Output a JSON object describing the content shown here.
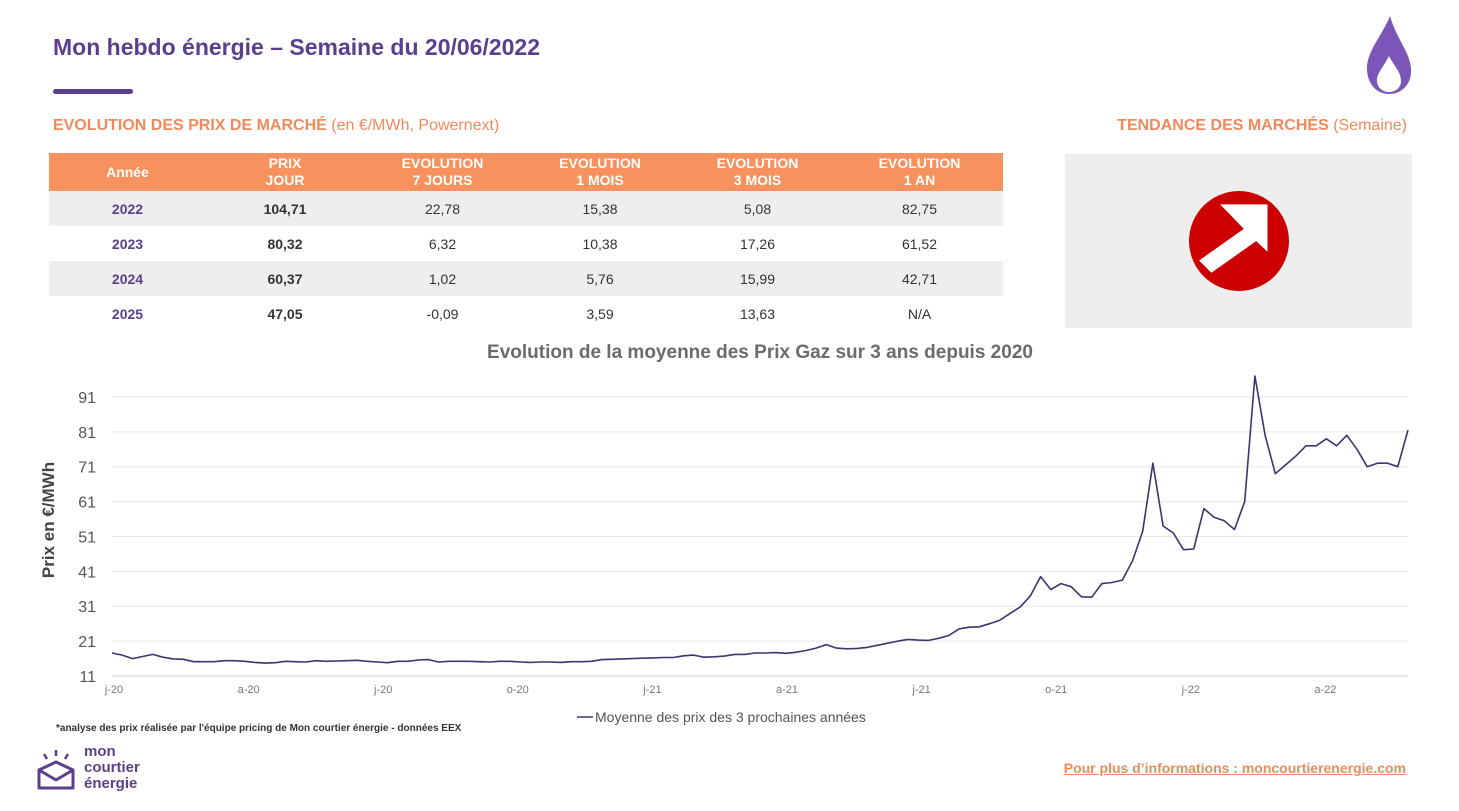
{
  "header": {
    "title": "Mon hebdo énergie – Semaine du 20/06/2022"
  },
  "market_prices": {
    "heading_bold": "EVOLUTION DES PRIX DE MARCHÉ",
    "heading_rest": " (en €/MWh, Powernext)",
    "columns": [
      "Année",
      "PRIX\nJOUR",
      "EVOLUTION\n7 JOURS",
      "EVOLUTION\n1 MOIS",
      "EVOLUTION\n3 MOIS",
      "EVOLUTION\n1 AN"
    ],
    "rows": [
      [
        "2022",
        "104,71",
        "22,78",
        "15,38",
        "5,08",
        "82,75"
      ],
      [
        "2023",
        "80,32",
        "6,32",
        "10,38",
        "17,26",
        "61,52"
      ],
      [
        "2024",
        "60,37",
        "1,02",
        "5,76",
        "15,99",
        "42,71"
      ],
      [
        "2025",
        "47,05",
        "-0,09",
        "3,59",
        "13,63",
        "N/A"
      ]
    ]
  },
  "trend": {
    "heading_bold": "TENDANCE DES MARCHÉS",
    "heading_rest": " (Semaine)",
    "icon": "trend-up-arrow-icon",
    "color": "#cc0000"
  },
  "chart_data": {
    "type": "line",
    "title": "Evolution de la moyenne des Prix Gaz sur 3 ans depuis 2020",
    "ylabel": "Prix en €/MWh",
    "xlabel": "",
    "ylim": [
      11,
      97
    ],
    "yticks": [
      11,
      21,
      31,
      41,
      51,
      61,
      71,
      81,
      91
    ],
    "grid": true,
    "legend_position": "bottom",
    "xtick_labels": [
      "j-20",
      "a-20",
      "j-20",
      "o-20",
      "j-21",
      "a-21",
      "j-21",
      "o-21",
      "j-22",
      "a-22"
    ],
    "series": [
      {
        "name": "Moyenne des prix des 3 prochaines années",
        "color": "#3d3470",
        "values": [
          17.6,
          17.0,
          16.0,
          16.6,
          17.2,
          16.4,
          15.9,
          15.8,
          15.1,
          15.1,
          15.1,
          15.4,
          15.4,
          15.2,
          14.9,
          14.7,
          14.8,
          15.2,
          15.1,
          15.0,
          15.4,
          15.2,
          15.3,
          15.4,
          15.5,
          15.2,
          15.0,
          14.8,
          15.2,
          15.2,
          15.6,
          15.7,
          15.0,
          15.2,
          15.2,
          15.2,
          15.1,
          15.0,
          15.2,
          15.2,
          15.0,
          14.9,
          15.0,
          15.0,
          14.9,
          15.1,
          15.1,
          15.2,
          15.7,
          15.8,
          15.9,
          16.0,
          16.1,
          16.2,
          16.3,
          16.3,
          16.8,
          17.0,
          16.4,
          16.5,
          16.7,
          17.2,
          17.2,
          17.6,
          17.6,
          17.7,
          17.5,
          17.8,
          18.3,
          19.0,
          20.0,
          19.0,
          18.8,
          18.9,
          19.2,
          19.8,
          20.4,
          21.0,
          21.5,
          21.3,
          21.2,
          21.8,
          22.6,
          24.5,
          25.0,
          25.1,
          26.0,
          27.0,
          28.9,
          30.8,
          34.0,
          39.5,
          35.8,
          37.5,
          36.6,
          33.7,
          33.6,
          37.5,
          37.8,
          38.5,
          44.0,
          52.5,
          72.0,
          54.0,
          52.0,
          47.2,
          47.4,
          59.0,
          56.5,
          55.5,
          53.0,
          61.0,
          97.0,
          80.0,
          69.0,
          71.5,
          74.0,
          77.0,
          77.0,
          79.0,
          77.0,
          80.0,
          76.0,
          71.0,
          72.0,
          72.0,
          71.0,
          81.5
        ]
      }
    ]
  },
  "footnote": "*analyse des prix réalisée par l'équipe pricing de Mon courtier énergie -  données EEX",
  "logo": {
    "line1": "mon",
    "line2": "courtier",
    "line3": "énergie"
  },
  "footer_link": "Pour plus d’informations : moncourtierenergie.com",
  "colors": {
    "brand_purple": "#5b3f8c",
    "accent_orange": "#f7925f",
    "line": "#3d3470"
  }
}
